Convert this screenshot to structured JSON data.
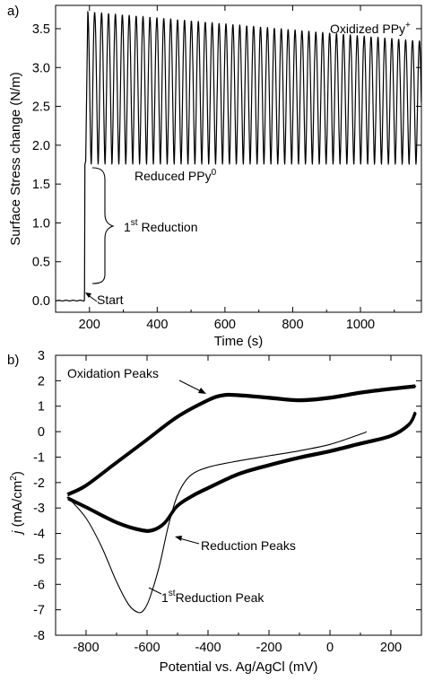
{
  "chart_data": [
    {
      "panel_label": "a)",
      "type": "line",
      "xlabel": "Time (s)",
      "ylabel": "Surface Stress change (N/m)",
      "xlim": [
        100,
        1180
      ],
      "ylim": [
        -0.15,
        3.8
      ],
      "xticks": [
        200,
        400,
        600,
        800,
        1000
      ],
      "yticks": [
        0.0,
        0.5,
        1.0,
        1.5,
        2.0,
        2.5,
        3.0,
        3.5
      ],
      "ytick_labels": [
        "0.0",
        "0.5",
        "1.0",
        "1.5",
        "2.0",
        "2.5",
        "3.0",
        "3.5"
      ],
      "baseline": 0.0,
      "reduction_start_time": 185,
      "first_peak_time": 195,
      "cycle_period_s": 20.4,
      "oxidized_level_start": 3.72,
      "oxidized_level_end": 3.34,
      "reduced_level": 1.75,
      "annotations": {
        "oxidized": "Oxidized PPy",
        "oxidized_sup": "+",
        "reduced": "Reduced PPy",
        "reduced_sup": "0",
        "first_reduction_pre": "1",
        "first_reduction_sup": "st",
        "first_reduction_post": " Reduction",
        "start": "Start"
      },
      "grid": false
    },
    {
      "panel_label": "b)",
      "type": "line",
      "xlabel": "Potential vs. Ag/AgCl (mV)",
      "ylabel": "j  (mA/cm²)",
      "ylabel_parts": {
        "symbol": "j",
        "unit_pre": "(mA/cm",
        "unit_sup": "2",
        "unit_post": ")"
      },
      "xlim": [
        -900,
        300
      ],
      "ylim": [
        -8,
        3
      ],
      "xticks": [
        -800,
        -600,
        -400,
        -200,
        0,
        200
      ],
      "yticks": [
        3,
        2,
        1,
        0,
        -1,
        -2,
        -3,
        -4,
        -5,
        -6,
        -7,
        -8
      ],
      "series": [
        {
          "name": "first_cycle",
          "x": [
            -850,
            -800,
            -750,
            -700,
            -660,
            -630,
            -610,
            -590,
            -560,
            -530,
            -500,
            -460,
            -400,
            -300,
            -200,
            -100,
            0,
            100,
            120
          ],
          "y": [
            -2.7,
            -3.4,
            -4.5,
            -5.9,
            -6.8,
            -7.1,
            -7.0,
            -6.5,
            -5.3,
            -3.7,
            -2.5,
            -1.75,
            -1.4,
            -1.15,
            -0.95,
            -0.75,
            -0.5,
            -0.1,
            0.0
          ]
        },
        {
          "name": "steady_reduction",
          "x": [
            -860,
            -800,
            -700,
            -620,
            -580,
            -540,
            -500,
            -450,
            -400,
            -300,
            -200,
            -100,
            0,
            100,
            200,
            260,
            280
          ],
          "y": [
            -2.6,
            -2.95,
            -3.55,
            -3.85,
            -3.85,
            -3.55,
            -2.9,
            -2.5,
            -2.2,
            -1.65,
            -1.3,
            -1.0,
            -0.75,
            -0.45,
            -0.15,
            0.3,
            0.75
          ]
        },
        {
          "name": "steady_oxidation",
          "x": [
            -860,
            -800,
            -700,
            -600,
            -500,
            -400,
            -350,
            -300,
            -200,
            -100,
            0,
            100,
            200,
            280
          ],
          "y": [
            -2.45,
            -2.1,
            -1.2,
            -0.3,
            0.6,
            1.25,
            1.45,
            1.45,
            1.35,
            1.25,
            1.35,
            1.55,
            1.7,
            1.8
          ]
        }
      ],
      "annotations": {
        "oxidation": "Oxidation Peaks",
        "reduction": "Reduction Peaks",
        "first_peak_pre": "1",
        "first_peak_sup": "st",
        "first_peak_post": "Reduction Peak"
      },
      "grid": false
    }
  ]
}
